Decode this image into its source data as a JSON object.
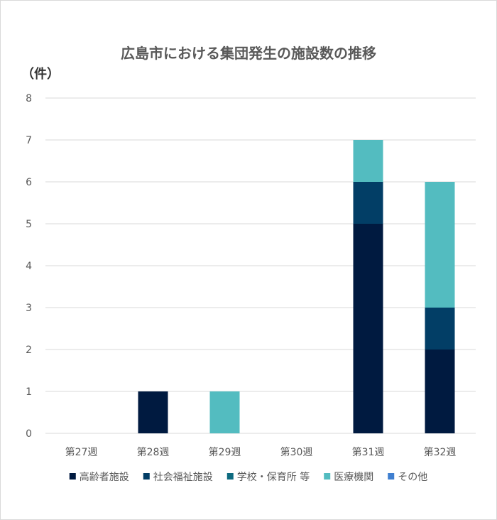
{
  "chart_data": {
    "type": "bar",
    "stacked": true,
    "title": "広島市における集団発生の施設数の推移",
    "unit_label": "（件）",
    "categories": [
      "第27週",
      "第28週",
      "第29週",
      "第30週",
      "第31週",
      "第32週"
    ],
    "ylim": [
      0,
      8
    ],
    "yticks": [
      0,
      1,
      2,
      3,
      4,
      5,
      6,
      7,
      8
    ],
    "grid": true,
    "legend_position": "bottom",
    "series": [
      {
        "name": "高齢者施設",
        "color": "#001a40",
        "values": [
          0,
          1,
          0,
          0,
          5,
          2
        ]
      },
      {
        "name": "社会福祉施設",
        "color": "#023e66",
        "values": [
          0,
          0,
          0,
          0,
          1,
          1
        ]
      },
      {
        "name": "学校・保育所 等",
        "color": "#0e6b80",
        "values": [
          0,
          0,
          0,
          0,
          0,
          0
        ]
      },
      {
        "name": "医療機関",
        "color": "#53bcc0",
        "values": [
          0,
          0,
          1,
          0,
          1,
          3
        ]
      },
      {
        "name": "その他",
        "color": "#3f7fd0",
        "values": [
          0,
          0,
          0,
          0,
          0,
          0
        ]
      }
    ]
  }
}
